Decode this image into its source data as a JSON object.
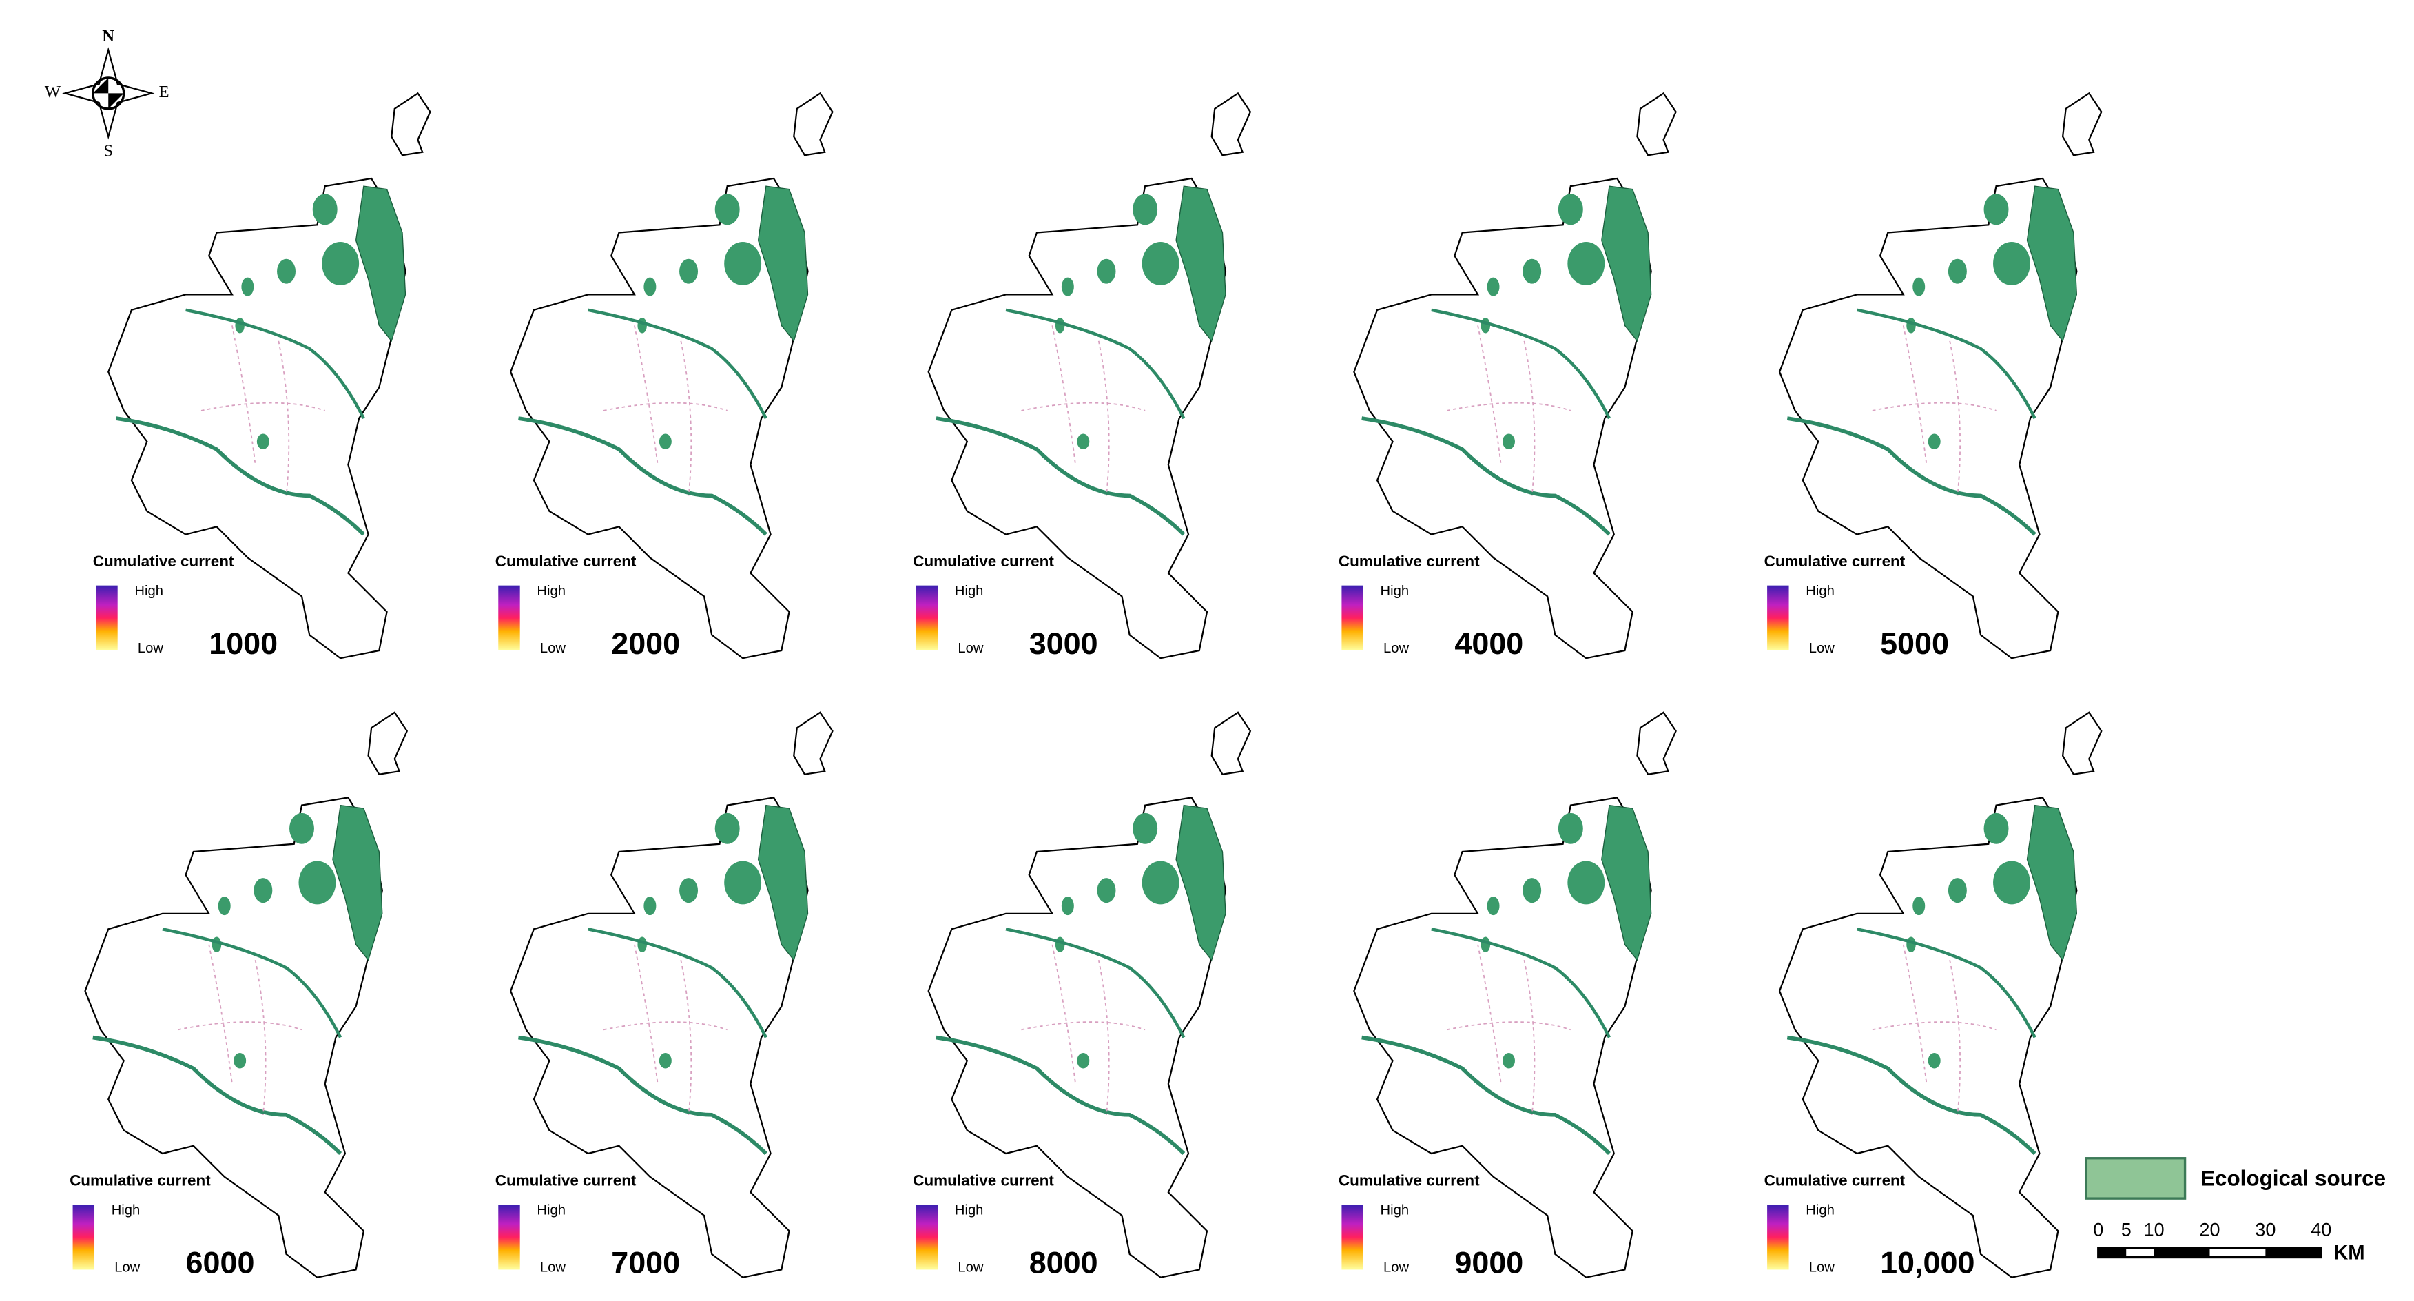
{
  "compass": {
    "north": "N",
    "south": "S",
    "east": "E",
    "west": "W"
  },
  "panels": [
    {
      "legend_title": "Cumulative current",
      "high": "High",
      "low": "Low",
      "label": "1000"
    },
    {
      "legend_title": "Cumulative current",
      "high": "High",
      "low": "Low",
      "label": "2000"
    },
    {
      "legend_title": "Cumulative current",
      "high": "High",
      "low": "Low",
      "label": "3000"
    },
    {
      "legend_title": "Cumulative current",
      "high": "High",
      "low": "Low",
      "label": "4000"
    },
    {
      "legend_title": "Cumulative current",
      "high": "High",
      "low": "Low",
      "label": "5000"
    },
    {
      "legend_title": "Cumulative current",
      "high": "High",
      "low": "Low",
      "label": "6000"
    },
    {
      "legend_title": "Cumulative current",
      "high": "High",
      "low": "Low",
      "label": "7000"
    },
    {
      "legend_title": "Cumulative current",
      "high": "High",
      "low": "Low",
      "label": "8000"
    },
    {
      "legend_title": "Cumulative current",
      "high": "High",
      "low": "Low",
      "label": "9000"
    },
    {
      "legend_title": "Cumulative current",
      "high": "High",
      "low": "Low",
      "label": "10,000"
    }
  ],
  "legend": {
    "ecological_source": "Ecological source"
  },
  "scale_bar": {
    "ticks": [
      0,
      5,
      10,
      20,
      30,
      40
    ],
    "unit": "KM"
  }
}
